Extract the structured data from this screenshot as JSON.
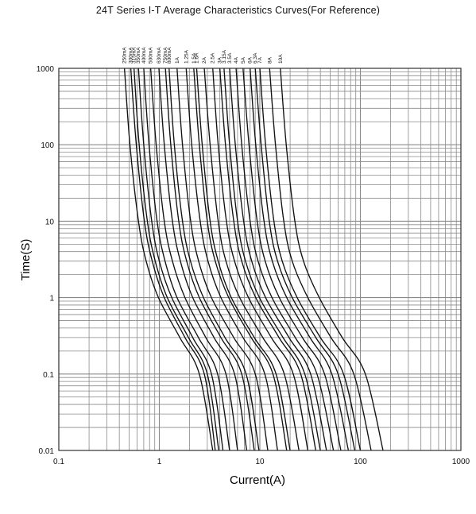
{
  "chart_data": {
    "type": "line",
    "title": "24T Series  I-T  Average Characteristics Curves(For Reference)",
    "xlabel": "Current(A)",
    "ylabel": "Time(S)",
    "x_scale": "log",
    "y_scale": "log",
    "xlim": [
      0.1,
      1000
    ],
    "ylim": [
      0.01,
      1000
    ],
    "x_ticks": [
      "0.1",
      "1",
      "10",
      "100",
      "1000"
    ],
    "y_ticks": [
      "0.01",
      "0.1",
      "1",
      "10",
      "100",
      "1000"
    ],
    "grid": true,
    "series": [
      {
        "name": "250mA",
        "x": [
          0.45,
          0.51,
          0.62,
          0.74,
          0.98,
          1.6,
          2.5,
          3.4
        ],
        "y": [
          1000,
          100,
          10,
          3,
          1,
          0.3,
          0.1,
          0.01
        ]
      },
      {
        "name": "300mA",
        "x": [
          0.52,
          0.59,
          0.71,
          0.85,
          1.12,
          1.8,
          2.8,
          3.6
        ],
        "y": [
          1000,
          100,
          10,
          3,
          1,
          0.3,
          0.1,
          0.01
        ]
      },
      {
        "name": "315mA",
        "x": [
          0.56,
          0.63,
          0.76,
          0.91,
          1.2,
          1.95,
          3.0,
          3.9
        ],
        "y": [
          1000,
          100,
          10,
          3,
          1,
          0.3,
          0.1,
          0.01
        ]
      },
      {
        "name": "350mA",
        "x": [
          0.62,
          0.7,
          0.84,
          1.0,
          1.33,
          2.15,
          3.3,
          4.3
        ],
        "y": [
          1000,
          100,
          10,
          3,
          1,
          0.3,
          0.1,
          0.01
        ]
      },
      {
        "name": "400mA",
        "x": [
          0.7,
          0.79,
          0.95,
          1.14,
          1.5,
          2.45,
          3.8,
          5.0
        ],
        "y": [
          1000,
          100,
          10,
          3,
          1,
          0.3,
          0.1,
          0.01
        ]
      },
      {
        "name": "500mA",
        "x": [
          0.82,
          0.93,
          1.12,
          1.35,
          1.8,
          2.9,
          4.6,
          6.0
        ],
        "y": [
          1000,
          100,
          10,
          3,
          1,
          0.3,
          0.1,
          0.01
        ]
      },
      {
        "name": "630mA",
        "x": [
          0.99,
          1.12,
          1.35,
          1.62,
          2.15,
          3.5,
          5.6,
          7.4
        ],
        "y": [
          1000,
          100,
          10,
          3,
          1,
          0.3,
          0.1,
          0.01
        ]
      },
      {
        "name": "750mA",
        "x": [
          1.15,
          1.3,
          1.56,
          1.87,
          2.5,
          4.1,
          6.6,
          8.8
        ],
        "y": [
          1000,
          100,
          10,
          3,
          1,
          0.3,
          0.1,
          0.01
        ]
      },
      {
        "name": "800mA",
        "x": [
          1.25,
          1.41,
          1.7,
          2.04,
          2.75,
          4.5,
          7.3,
          9.8
        ],
        "y": [
          1000,
          100,
          10,
          3,
          1,
          0.3,
          0.1,
          0.01
        ]
      },
      {
        "name": "1A",
        "x": [
          1.5,
          1.7,
          2.05,
          2.46,
          3.3,
          5.5,
          9.0,
          12.0
        ],
        "y": [
          1000,
          100,
          10,
          3,
          1,
          0.3,
          0.1,
          0.01
        ]
      },
      {
        "name": "1.25A",
        "x": [
          1.85,
          2.1,
          2.55,
          3.05,
          4.1,
          6.8,
          11.2,
          15.0
        ],
        "y": [
          1000,
          100,
          10,
          3,
          1,
          0.3,
          0.1,
          0.01
        ]
      },
      {
        "name": "1.5A",
        "x": [
          2.2,
          2.5,
          3.0,
          3.6,
          4.9,
          8.2,
          13.5,
          18.5
        ],
        "y": [
          1000,
          100,
          10,
          3,
          1,
          0.3,
          0.1,
          0.01
        ]
      },
      {
        "name": "1.6A",
        "x": [
          2.35,
          2.67,
          3.2,
          3.85,
          5.2,
          8.8,
          14.5,
          20.0
        ],
        "y": [
          1000,
          100,
          10,
          3,
          1,
          0.3,
          0.1,
          0.01
        ]
      },
      {
        "name": "2A",
        "x": [
          2.8,
          3.2,
          3.85,
          4.6,
          6.3,
          10.7,
          17.5,
          24.5
        ],
        "y": [
          1000,
          100,
          10,
          3,
          1,
          0.3,
          0.1,
          0.01
        ]
      },
      {
        "name": "2.5A",
        "x": [
          3.4,
          3.85,
          4.65,
          5.6,
          7.7,
          13.0,
          21.5,
          30.0
        ],
        "y": [
          1000,
          100,
          10,
          3,
          1,
          0.3,
          0.1,
          0.01
        ]
      },
      {
        "name": "3A",
        "x": [
          4.0,
          4.55,
          5.5,
          6.6,
          9.1,
          15.5,
          25.5,
          36.0
        ],
        "y": [
          1000,
          100,
          10,
          3,
          1,
          0.3,
          0.1,
          0.01
        ]
      },
      {
        "name": "3.15A",
        "x": [
          4.4,
          5.0,
          6.0,
          7.2,
          9.9,
          17.0,
          28.0,
          40.0
        ],
        "y": [
          1000,
          100,
          10,
          3,
          1,
          0.3,
          0.1,
          0.01
        ]
      },
      {
        "name": "3.5A",
        "x": [
          5.0,
          5.7,
          6.9,
          8.3,
          11.4,
          19.5,
          32.0,
          46.0
        ],
        "y": [
          1000,
          100,
          10,
          3,
          1,
          0.3,
          0.1,
          0.01
        ]
      },
      {
        "name": "4A",
        "x": [
          5.8,
          6.6,
          8.0,
          9.6,
          13.2,
          22.5,
          37.0,
          54.0
        ],
        "y": [
          1000,
          100,
          10,
          3,
          1,
          0.3,
          0.1,
          0.01
        ]
      },
      {
        "name": "5A",
        "x": [
          6.8,
          7.8,
          9.4,
          11.3,
          15.6,
          26.5,
          44.0,
          64.0
        ],
        "y": [
          1000,
          100,
          10,
          3,
          1,
          0.3,
          0.1,
          0.01
        ]
      },
      {
        "name": "6A",
        "x": [
          8.0,
          9.1,
          11.0,
          13.3,
          18.5,
          31.5,
          52.0,
          76.0
        ],
        "y": [
          1000,
          100,
          10,
          3,
          1,
          0.3,
          0.1,
          0.01
        ]
      },
      {
        "name": "6.3A",
        "x": [
          9.0,
          10.3,
          12.4,
          15.0,
          21.0,
          36.0,
          60.0,
          88.0
        ],
        "y": [
          1000,
          100,
          10,
          3,
          1,
          0.3,
          0.1,
          0.01
        ]
      },
      {
        "name": "7A",
        "x": [
          10.0,
          11.4,
          13.8,
          16.7,
          23.5,
          40.0,
          68.0,
          100.0
        ],
        "y": [
          1000,
          100,
          10,
          3,
          1,
          0.3,
          0.1,
          0.01
        ]
      },
      {
        "name": "8A",
        "x": [
          12.5,
          14.3,
          17.3,
          21.0,
          30.0,
          51.0,
          86.0,
          128.0
        ],
        "y": [
          1000,
          100,
          10,
          3,
          1,
          0.3,
          0.1,
          0.01
        ]
      },
      {
        "name": "10A",
        "x": [
          16.0,
          18.3,
          22.3,
          27.2,
          39.0,
          66.0,
          112.0,
          168.0
        ],
        "y": [
          1000,
          100,
          10,
          3,
          1,
          0.3,
          0.1,
          0.01
        ]
      }
    ]
  }
}
